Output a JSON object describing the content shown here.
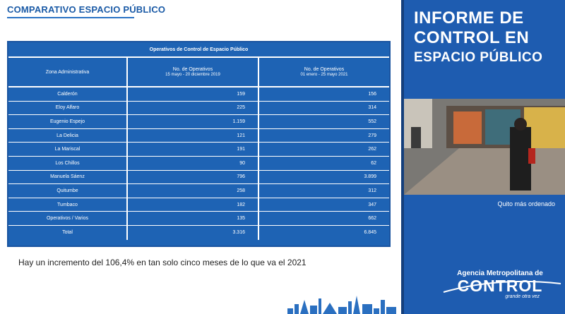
{
  "slide": {
    "title": "COMPARATIVO ESPACIO PÚBLICO",
    "table": {
      "caption": "Operativos de Control de Espacio Público",
      "headers": [
        {
          "label": "Zona Administrativa",
          "sub": ""
        },
        {
          "label": "No. de Operativos",
          "sub": "15 mayo - 20 diciembre 2019"
        },
        {
          "label": "No. de Operativos",
          "sub": "01 enero - 25 mayo 2021"
        }
      ],
      "rows": [
        [
          "Calderón",
          "159",
          "156"
        ],
        [
          "Eloy Alfaro",
          "225",
          "314"
        ],
        [
          "Eugenio Espejo",
          "1.159",
          "552"
        ],
        [
          "La Delicia",
          "121",
          "279"
        ],
        [
          "La Mariscal",
          "191",
          "262"
        ],
        [
          "Los Chillos",
          "90",
          "62"
        ],
        [
          "Manuela Sáenz",
          "796",
          "3.899"
        ],
        [
          "Quitumbe",
          "258",
          "312"
        ],
        [
          "Tumbaco",
          "182",
          "347"
        ],
        [
          "Operativos / Varios",
          "135",
          "662"
        ],
        [
          "Total",
          "3.316",
          "6.845"
        ]
      ]
    },
    "note": "Hay un incremento del 106,4% en tan solo cinco meses de lo que va el 2021"
  },
  "side": {
    "title_lines": [
      "INFORME DE",
      "CONTROL EN",
      "ESPACIO PÚBLICO"
    ],
    "photo_caption": "Quito más ordenado",
    "brand_line1": "Agencia Metropolitana de",
    "brand_line2": "CONTROL",
    "brand_tagline": "grande otra vez"
  },
  "colors": {
    "table_blue": "#1e63b4",
    "title_blue": "#1a5aa6",
    "side_blue": "#1e5cb0"
  }
}
